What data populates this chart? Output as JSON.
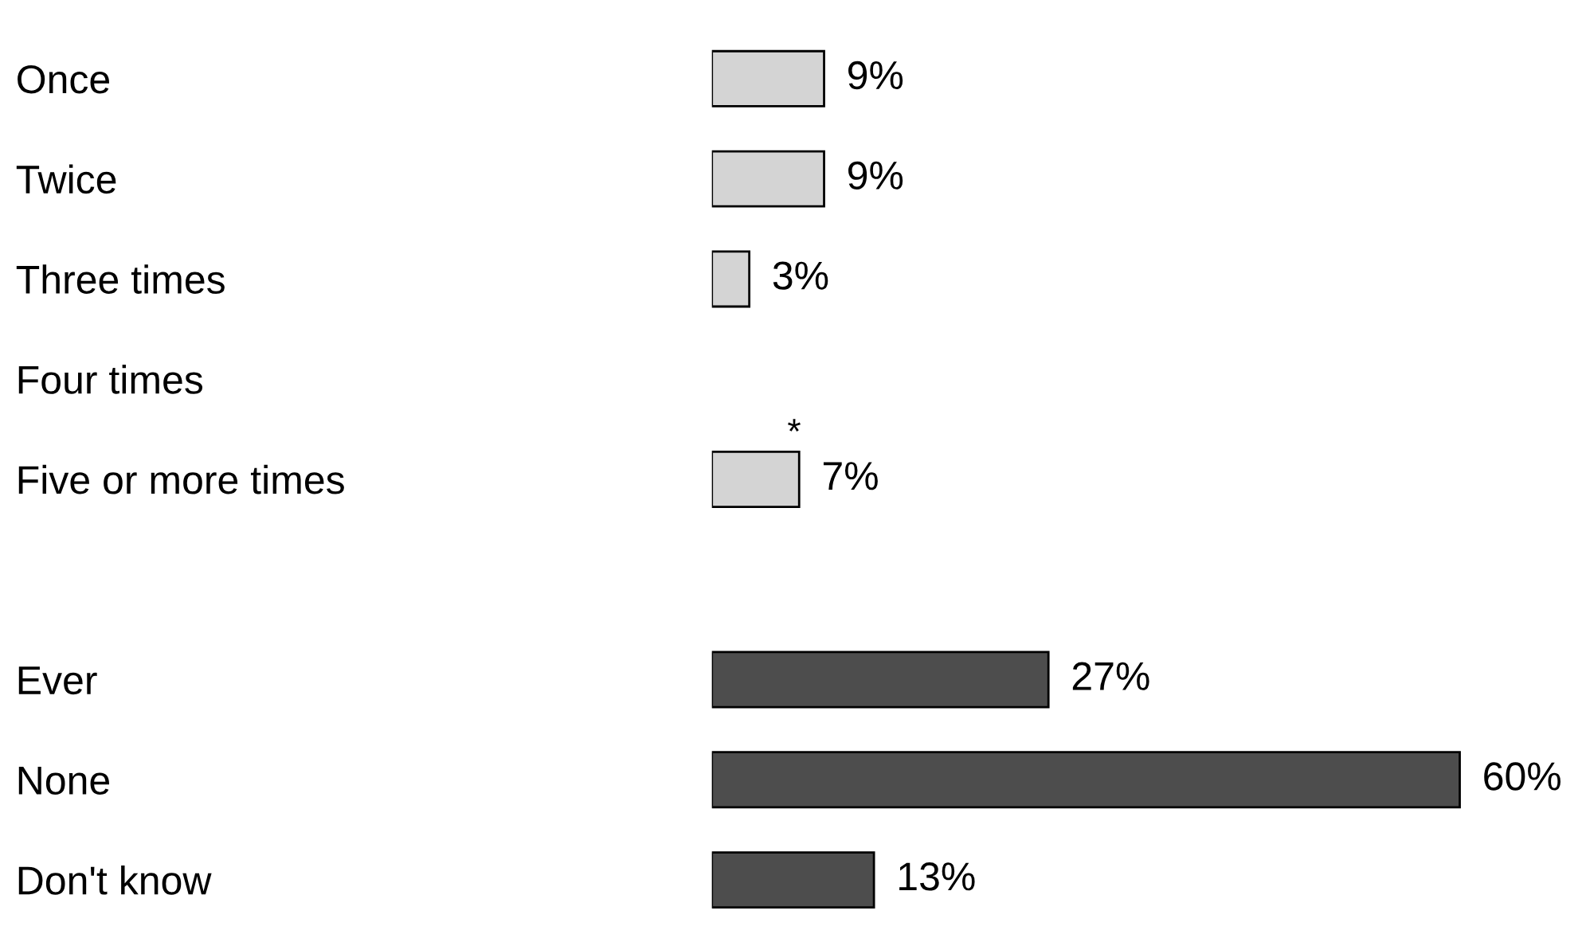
{
  "chart_data": {
    "type": "bar",
    "orientation": "horizontal",
    "categories": [
      "Once",
      "Twice",
      "Three times",
      "Four times",
      "Five or more times",
      null,
      "Ever",
      "None",
      "Don't know"
    ],
    "values": [
      9,
      9,
      3,
      null,
      7,
      null,
      27,
      60,
      13
    ],
    "colors": [
      "#d4d4d4",
      "#d4d4d4",
      "#d4d4d4",
      "#d4d4d4",
      "#d4d4d4",
      "#d4d4d4",
      "#4d4d4d",
      "#4d4d4d",
      "#4d4d4d"
    ],
    "value_labels": [
      "9%",
      "9%",
      "3%",
      "*",
      "7%",
      null,
      "27%",
      "60%",
      "13%"
    ],
    "grid": false,
    "legend": false
  }
}
